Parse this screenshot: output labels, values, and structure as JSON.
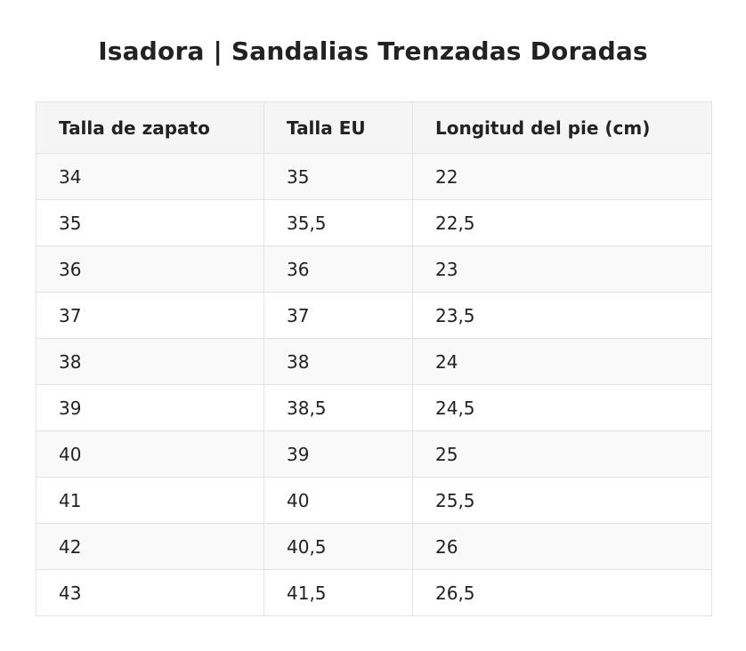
{
  "page": {
    "title": "Isadora | Sandalias Trenzadas Doradas"
  },
  "table": {
    "headers": [
      "Talla de zapato",
      "Talla EU",
      "Longitud del pie (cm)"
    ],
    "rows": [
      [
        "34",
        "35",
        "22"
      ],
      [
        "35",
        "35,5",
        "22,5"
      ],
      [
        "36",
        "36",
        "23"
      ],
      [
        "37",
        "37",
        "23,5"
      ],
      [
        "38",
        "38",
        "24"
      ],
      [
        "39",
        "38,5",
        "24,5"
      ],
      [
        "40",
        "39",
        "25"
      ],
      [
        "41",
        "40",
        "25,5"
      ],
      [
        "42",
        "40,5",
        "26"
      ],
      [
        "43",
        "41,5",
        "26,5"
      ]
    ]
  },
  "colors": {
    "text": "#222222",
    "header_background": "#f5f5f5",
    "row_alt_background": "#f9f9f9",
    "border": "#e3e3e3"
  }
}
